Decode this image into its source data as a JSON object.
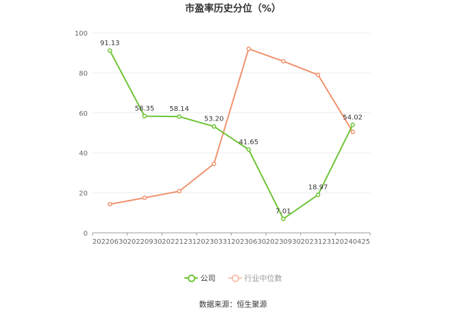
{
  "chart_data": {
    "type": "line",
    "title": "市盈率历史分位（%）",
    "categories": [
      "20220630",
      "20220930",
      "20221231",
      "20230331",
      "20230630",
      "20230930",
      "20231231",
      "20240425"
    ],
    "ylim": [
      0,
      100
    ],
    "yticks": [
      0,
      20,
      40,
      60,
      80,
      100
    ],
    "grid": true,
    "legend_position": "bottom",
    "series": [
      {
        "name": "公司",
        "color": "#6cc433",
        "values": [
          91.13,
          58.35,
          58.14,
          53.2,
          41.65,
          7.01,
          18.97,
          54.02
        ],
        "labels": [
          "91.13",
          "58.35",
          "58.14",
          "53.20",
          "41.65",
          "7.01",
          "18.97",
          "54.02"
        ]
      },
      {
        "name": "行业中位数",
        "color": "#f0906a",
        "values": [
          14.3,
          17.5,
          20.8,
          34.5,
          92.0,
          85.8,
          79.0,
          50.5
        ]
      }
    ]
  },
  "source": "数据来源：恒生聚源"
}
